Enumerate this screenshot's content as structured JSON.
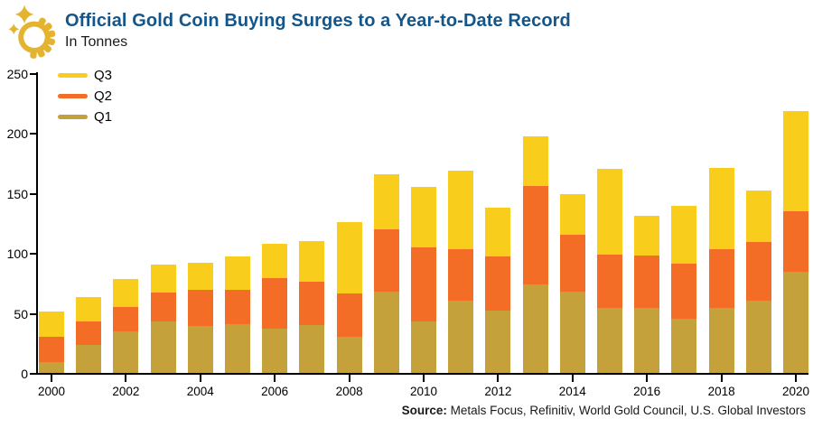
{
  "header": {
    "title": "Official Gold Coin Buying Surges to a Year-to-Date Record",
    "subtitle": "In Tonnes",
    "logo_icon": "gold-coin-with-sparkles-icon"
  },
  "source": {
    "label": "Source:",
    "text": " Metals Focus, Refinitiv, World Gold Council, U.S. Global Investors"
  },
  "colors": {
    "q1_gold": "#C4A13B",
    "q2_orange": "#F36D26",
    "q3_yellow": "#F9CD1C",
    "title_blue": "#15568A",
    "coin_gold": "#E4B32F",
    "axis_black": "#000000"
  },
  "chart_data": {
    "type": "bar",
    "stacked": true,
    "title": "Official Gold Coin Buying Surges to a Year-to-Date Record",
    "ylabel": "In Tonnes",
    "xlabel": "",
    "grid": false,
    "ylim": [
      0,
      250
    ],
    "yticks": [
      0,
      50,
      100,
      150,
      200,
      250
    ],
    "categories": [
      "2000",
      "2001",
      "2002",
      "2003",
      "2004",
      "2005",
      "2006",
      "2007",
      "2008",
      "2009",
      "2010",
      "2011",
      "2012",
      "2013",
      "2014",
      "2015",
      "2016",
      "2017",
      "2018",
      "2019",
      "2020"
    ],
    "xtick_labels": [
      "2000",
      "2002",
      "2004",
      "2006",
      "2008",
      "2010",
      "2012",
      "2014",
      "2016",
      "2018",
      "2020"
    ],
    "series": [
      {
        "name": "Q1",
        "color": "#C4A13B",
        "values": [
          9,
          23,
          35,
          43,
          39,
          41,
          37,
          40,
          30,
          68,
          43,
          60,
          52,
          74,
          68,
          54,
          54,
          45,
          54,
          60,
          84
        ]
      },
      {
        "name": "Q2",
        "color": "#F36D26",
        "values": [
          21,
          20,
          20,
          24,
          30,
          28,
          42,
          36,
          36,
          52,
          62,
          43,
          45,
          82,
          47,
          45,
          44,
          46,
          49,
          49,
          51
        ]
      },
      {
        "name": "Q3",
        "color": "#F9CD1C",
        "values": [
          21,
          20,
          23,
          23,
          23,
          28,
          29,
          34,
          60,
          46,
          50,
          66,
          41,
          41,
          34,
          71,
          33,
          48,
          68,
          43,
          83
        ]
      }
    ],
    "stack_totals": [
      51,
      63,
      78,
      90,
      92,
      97,
      108,
      110,
      126,
      166,
      155,
      169,
      138,
      197,
      149,
      170,
      131,
      139,
      171,
      152,
      218
    ],
    "legend": {
      "position": "top-left",
      "entries": [
        "Q3",
        "Q2",
        "Q1"
      ]
    }
  }
}
